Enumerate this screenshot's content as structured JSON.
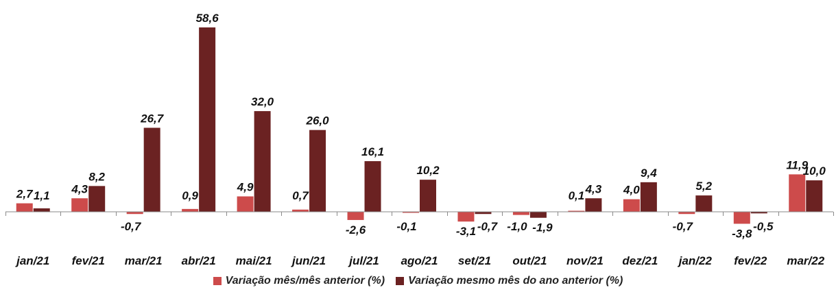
{
  "chart_data": {
    "type": "bar",
    "categories": [
      "jan/21",
      "fev/21",
      "mar/21",
      "abr/21",
      "mai/21",
      "jun/21",
      "jul/21",
      "ago/21",
      "set/21",
      "out/21",
      "nov/21",
      "dez/21",
      "jan/22",
      "fev/22",
      "mar/22"
    ],
    "series": [
      {
        "name": "Variação mês/mês anterior (%)",
        "color": "#cd4b4b",
        "values": [
          2.7,
          4.3,
          -0.7,
          0.9,
          4.9,
          0.7,
          -2.6,
          -0.1,
          -3.1,
          -1.0,
          0.1,
          4.0,
          -0.7,
          -3.8,
          11.9
        ],
        "labels": [
          "2,7",
          "4,3",
          "-0,7",
          "0,9",
          "4,9",
          "0,7",
          "-2,6",
          "-0,1",
          "-3,1",
          "-1,0",
          "0,1",
          "4,0",
          "-0,7",
          "-3,8",
          "11,9"
        ]
      },
      {
        "name": "Variação mesmo mês do ano anterior (%)",
        "color": "#6b2222",
        "values": [
          1.1,
          8.2,
          26.7,
          58.6,
          32.0,
          26.0,
          16.1,
          10.2,
          -0.7,
          -1.9,
          4.3,
          9.4,
          5.2,
          -0.5,
          10.0
        ],
        "labels": [
          "1,1",
          "8,2",
          "26,7",
          "58,6",
          "32,0",
          "26,0",
          "16,1",
          "10,2",
          "-0,7",
          "-1,9",
          "4,3",
          "9,4",
          "5,2",
          "-0,5",
          "10,0"
        ]
      }
    ],
    "title": "",
    "xlabel": "",
    "ylabel": "",
    "ylim": [
      -8,
      64
    ],
    "grid": false,
    "legend_position": "bottom"
  }
}
